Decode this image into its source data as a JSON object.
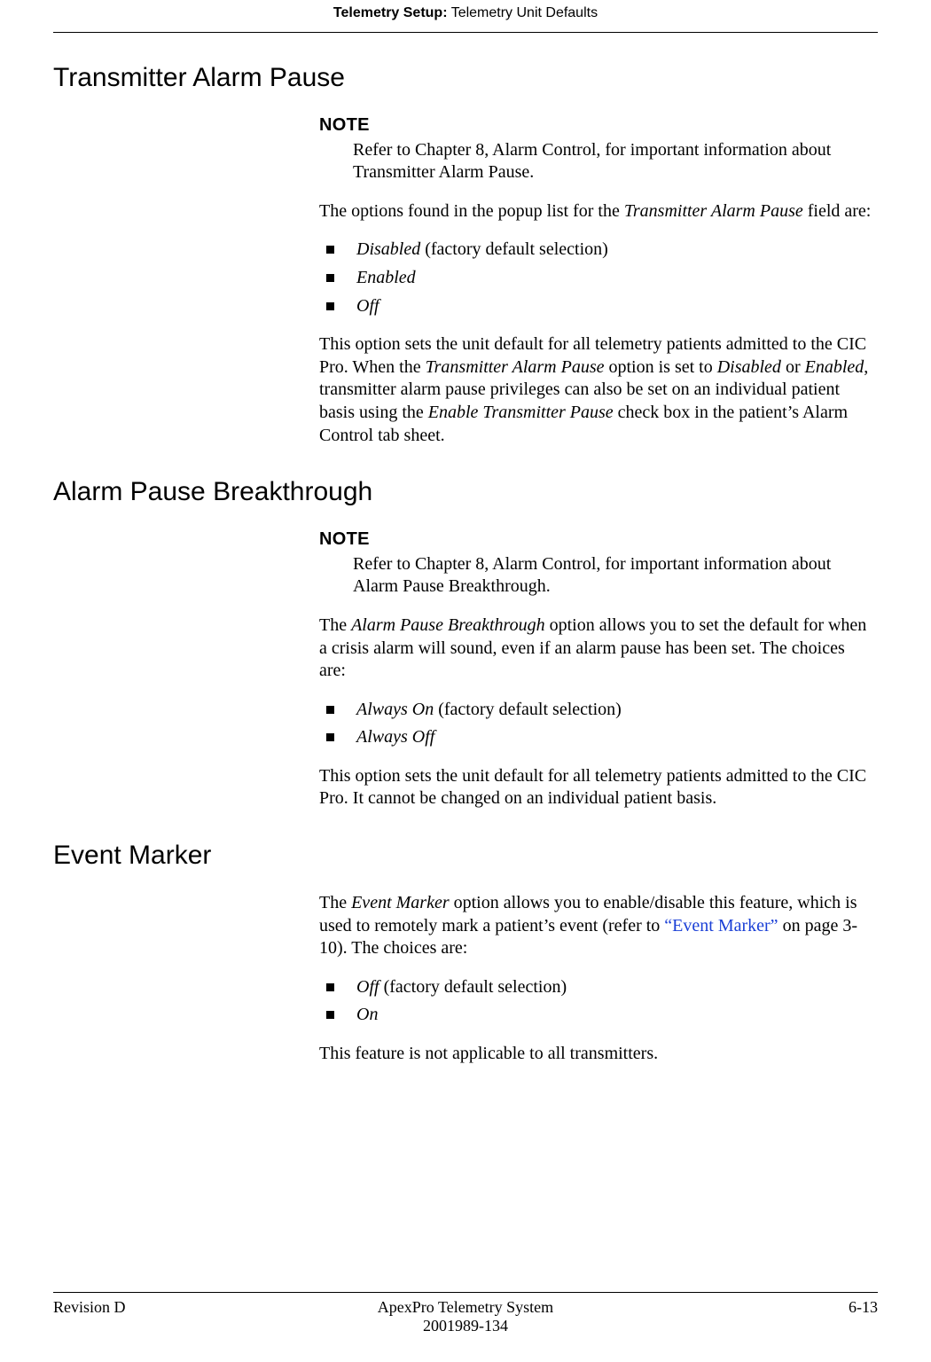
{
  "colors": {
    "text": "#000000",
    "link": "#1a3fd6",
    "background": "#ffffff"
  },
  "header": {
    "chapter": "Telemetry Setup:",
    "section": " Telemetry Unit Defaults"
  },
  "sections": {
    "tap": {
      "heading": "Transmitter Alarm Pause",
      "note_label": "NOTE",
      "note_body": "Refer to Chapter 8, Alarm Control, for important information about Transmitter Alarm Pause.",
      "intro_a": "The options found in the popup list for the ",
      "intro_em": "Transmitter Alarm Pause",
      "intro_b": " field are:",
      "items": {
        "i1_em": "Disabled",
        "i1_rest": " (factory default selection)",
        "i2_em": "Enabled",
        "i3_em": "Off"
      },
      "p2_a": "This option sets the unit default for all telemetry patients admitted to the CIC Pro. When the ",
      "p2_em1": "Transmitter Alarm Pause",
      "p2_b": " option is set to ",
      "p2_em2": "Disabled",
      "p2_c": " or ",
      "p2_em3": "Enabled",
      "p2_d": ", transmitter alarm pause privileges can also be set on an individual patient basis using the ",
      "p2_em4": "Enable Transmitter Pause",
      "p2_e": " check box in the patient’s Alarm Control tab sheet."
    },
    "apb": {
      "heading": "Alarm Pause Breakthrough",
      "note_label": "NOTE",
      "note_body": "Refer to Chapter 8, Alarm Control, for important information about Alarm Pause Breakthrough.",
      "intro_a": "The ",
      "intro_em": "Alarm Pause Breakthrough",
      "intro_b": " option allows you to set the default for when a crisis alarm will sound, even if an alarm pause has been set. The choices are:",
      "items": {
        "i1_em": "Always On",
        "i1_rest": " (factory default selection)",
        "i2_em": "Always Off"
      },
      "p2": "This option sets the unit default for all telemetry patients admitted to the CIC Pro. It cannot be changed on an individual patient basis."
    },
    "em": {
      "heading": "Event Marker",
      "intro_a": "The ",
      "intro_em": "Event Marker",
      "intro_b": " option allows you to enable/disable this feature, which is used to remotely mark a patient’s event (refer to ",
      "intro_link": "“Event Marker”",
      "intro_c": " on page 3-10). The choices are:",
      "items": {
        "i1_em": "Off",
        "i1_rest": " (factory default selection)",
        "i2_em": "On"
      },
      "p2": "This feature is not applicable to all transmitters."
    }
  },
  "footer": {
    "left": "Revision D",
    "center1": "ApexPro Telemetry System",
    "center2": "2001989-134",
    "right": "6-13"
  }
}
